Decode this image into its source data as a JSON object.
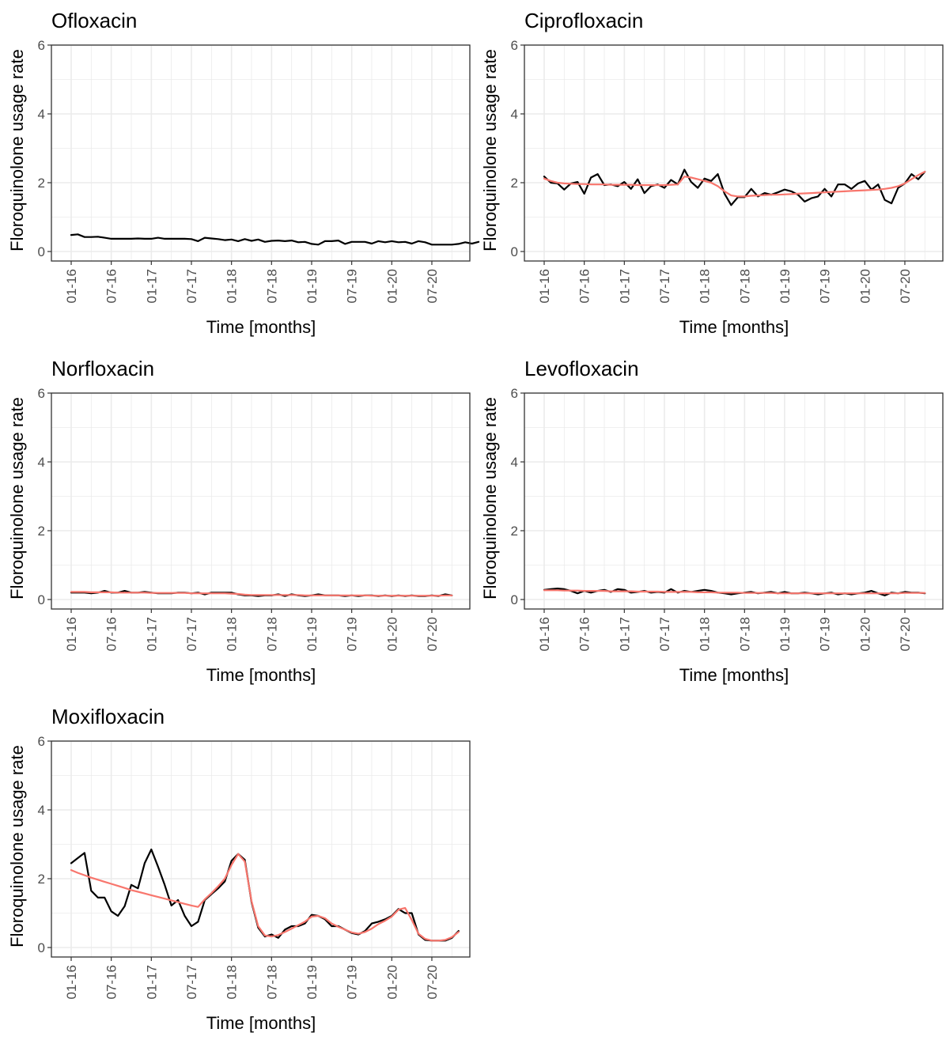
{
  "figure": {
    "ylabel": "Floroquinolone usage rate",
    "xlabel": "Time [months]",
    "x_tick_labels": [
      "01-16",
      "07-16",
      "01-17",
      "07-17",
      "01-18",
      "07-18",
      "01-19",
      "07-19",
      "01-20",
      "07-20"
    ],
    "y_tick_labels": [
      "0",
      "2",
      "4",
      "6"
    ]
  },
  "colors": {
    "observed": "#000000",
    "fitted": "#F8766D",
    "grid": "#EBEBEB",
    "border": "#333333"
  },
  "chart_data": [
    {
      "type": "line",
      "title": "Ofloxacin",
      "xlabel": "Time [months]",
      "ylabel": "Floroquinolone usage rate",
      "x_start": "01-16",
      "x_unit": "months",
      "ylim": [
        0,
        6
      ],
      "grid": true,
      "series": [
        {
          "values": [
            0.48,
            0.5,
            0.42,
            0.42,
            0.43,
            0.4,
            0.37,
            0.37,
            0.37,
            0.37,
            0.38,
            0.37,
            0.37,
            0.4,
            0.37,
            0.37,
            0.37,
            0.37,
            0.36,
            0.3,
            0.4,
            0.38,
            0.36,
            0.33,
            0.35,
            0.3,
            0.36,
            0.31,
            0.35,
            0.28,
            0.31,
            0.32,
            0.3,
            0.32,
            0.27,
            0.28,
            0.22,
            0.2,
            0.3,
            0.3,
            0.32,
            0.22,
            0.28,
            0.28,
            0.28,
            0.23,
            0.3,
            0.27,
            0.3,
            0.27,
            0.28,
            0.23,
            0.3,
            0.27,
            0.2,
            0.2,
            0.2,
            0.2,
            0.22,
            0.27,
            0.23,
            0.28
          ]
        }
      ]
    },
    {
      "type": "line",
      "title": "Ciprofloxacin",
      "xlabel": "Time [months]",
      "ylabel": "Floroquinolone usage rate",
      "x_start": "01-16",
      "x_unit": "months",
      "ylim": [
        0,
        6
      ],
      "grid": true,
      "series": [
        {
          "values": [
            2.18,
            2.0,
            1.98,
            1.8,
            1.98,
            2.02,
            1.68,
            2.15,
            2.25,
            1.93,
            1.95,
            1.9,
            2.02,
            1.82,
            2.1,
            1.7,
            1.9,
            1.95,
            1.85,
            2.08,
            1.95,
            2.38,
            2.02,
            1.85,
            2.12,
            2.05,
            2.25,
            1.68,
            1.35,
            1.58,
            1.58,
            1.82,
            1.6,
            1.7,
            1.65,
            1.72,
            1.8,
            1.75,
            1.65,
            1.45,
            1.55,
            1.6,
            1.82,
            1.6,
            1.95,
            1.95,
            1.82,
            1.98,
            2.05,
            1.8,
            1.95,
            1.5,
            1.4,
            1.85,
            1.98,
            2.25,
            2.1,
            2.32
          ]
        },
        {
          "values": [
            2.12,
            2.05,
            2.0,
            1.98,
            1.97,
            1.96,
            1.96,
            1.95,
            1.95,
            1.95,
            1.94,
            1.94,
            1.94,
            1.94,
            1.93,
            1.93,
            1.93,
            1.93,
            1.93,
            1.94,
            1.95,
            2.18,
            2.15,
            2.1,
            2.05,
            2.0,
            1.9,
            1.75,
            1.63,
            1.6,
            1.6,
            1.62,
            1.63,
            1.64,
            1.65,
            1.65,
            1.66,
            1.67,
            1.68,
            1.69,
            1.7,
            1.71,
            1.72,
            1.73,
            1.74,
            1.75,
            1.76,
            1.77,
            1.78,
            1.79,
            1.8,
            1.82,
            1.85,
            1.9,
            1.98,
            2.1,
            2.22,
            2.32
          ]
        }
      ]
    },
    {
      "type": "line",
      "title": "Norfloxacin",
      "xlabel": "Time [months]",
      "ylabel": "Floroquinolone usage rate",
      "x_start": "01-16",
      "x_unit": "months",
      "ylim": [
        0,
        6
      ],
      "grid": true,
      "series": [
        {
          "values": [
            0.2,
            0.2,
            0.2,
            0.18,
            0.2,
            0.25,
            0.2,
            0.2,
            0.25,
            0.2,
            0.2,
            0.22,
            0.2,
            0.18,
            0.18,
            0.18,
            0.2,
            0.2,
            0.18,
            0.2,
            0.15,
            0.2,
            0.2,
            0.2,
            0.2,
            0.15,
            0.12,
            0.12,
            0.1,
            0.12,
            0.12,
            0.15,
            0.1,
            0.15,
            0.12,
            0.1,
            0.12,
            0.15,
            0.12,
            0.12,
            0.12,
            0.1,
            0.12,
            0.1,
            0.12,
            0.12,
            0.1,
            0.12,
            0.1,
            0.12,
            0.1,
            0.12,
            0.1,
            0.1,
            0.12,
            0.1,
            0.15,
            0.12
          ]
        },
        {
          "values": [
            0.22,
            0.22,
            0.22,
            0.21,
            0.21,
            0.21,
            0.21,
            0.2,
            0.2,
            0.2,
            0.2,
            0.2,
            0.19,
            0.19,
            0.19,
            0.19,
            0.19,
            0.19,
            0.18,
            0.18,
            0.18,
            0.18,
            0.18,
            0.18,
            0.17,
            0.16,
            0.14,
            0.13,
            0.13,
            0.13,
            0.13,
            0.13,
            0.13,
            0.13,
            0.13,
            0.12,
            0.12,
            0.12,
            0.12,
            0.12,
            0.12,
            0.12,
            0.12,
            0.12,
            0.12,
            0.11,
            0.11,
            0.11,
            0.11,
            0.11,
            0.11,
            0.11,
            0.11,
            0.11,
            0.11,
            0.11,
            0.12,
            0.12
          ]
        }
      ]
    },
    {
      "type": "line",
      "title": "Levofloxacin",
      "xlabel": "Time [months]",
      "ylabel": "Floroquinolone usage rate",
      "x_start": "01-16",
      "x_unit": "months",
      "ylim": [
        0,
        6
      ],
      "grid": true,
      "series": [
        {
          "values": [
            0.28,
            0.3,
            0.32,
            0.3,
            0.25,
            0.18,
            0.25,
            0.2,
            0.25,
            0.28,
            0.22,
            0.3,
            0.28,
            0.2,
            0.22,
            0.25,
            0.2,
            0.22,
            0.2,
            0.3,
            0.2,
            0.25,
            0.22,
            0.25,
            0.28,
            0.25,
            0.2,
            0.18,
            0.15,
            0.18,
            0.2,
            0.22,
            0.18,
            0.2,
            0.22,
            0.18,
            0.22,
            0.18,
            0.18,
            0.2,
            0.18,
            0.15,
            0.18,
            0.2,
            0.15,
            0.18,
            0.15,
            0.18,
            0.2,
            0.25,
            0.18,
            0.12,
            0.2,
            0.18,
            0.22,
            0.2,
            0.2,
            0.18
          ]
        },
        {
          "values": [
            0.27,
            0.27,
            0.27,
            0.26,
            0.26,
            0.26,
            0.25,
            0.25,
            0.25,
            0.25,
            0.24,
            0.24,
            0.24,
            0.24,
            0.23,
            0.23,
            0.23,
            0.23,
            0.22,
            0.22,
            0.22,
            0.22,
            0.22,
            0.21,
            0.21,
            0.21,
            0.2,
            0.2,
            0.2,
            0.2,
            0.19,
            0.19,
            0.19,
            0.19,
            0.19,
            0.18,
            0.18,
            0.18,
            0.18,
            0.18,
            0.18,
            0.18,
            0.18,
            0.18,
            0.18,
            0.18,
            0.18,
            0.18,
            0.18,
            0.18,
            0.18,
            0.18,
            0.18,
            0.18,
            0.19,
            0.19,
            0.19,
            0.19
          ]
        }
      ]
    },
    {
      "type": "line",
      "title": "Moxifloxacin",
      "xlabel": "Time [months]",
      "ylabel": "Floroquinolone usage rate",
      "x_start": "01-16",
      "x_unit": "months",
      "ylim": [
        0,
        6
      ],
      "grid": true,
      "series": [
        {
          "values": [
            2.45,
            2.6,
            2.75,
            1.65,
            1.45,
            1.45,
            1.05,
            0.92,
            1.2,
            1.82,
            1.72,
            2.45,
            2.85,
            2.35,
            1.82,
            1.22,
            1.38,
            0.92,
            0.62,
            0.75,
            1.38,
            1.55,
            1.72,
            1.92,
            2.52,
            2.72,
            2.55,
            1.32,
            0.58,
            0.32,
            0.38,
            0.28,
            0.52,
            0.62,
            0.62,
            0.7,
            0.95,
            0.92,
            0.82,
            0.62,
            0.62,
            0.52,
            0.42,
            0.38,
            0.48,
            0.7,
            0.75,
            0.82,
            0.92,
            1.12,
            1.0,
            1.0,
            0.38,
            0.22,
            0.2,
            0.2,
            0.2,
            0.28,
            0.48
          ]
        },
        {
          "values": [
            2.25,
            2.17,
            2.1,
            2.03,
            1.97,
            1.91,
            1.85,
            1.79,
            1.73,
            1.67,
            1.62,
            1.57,
            1.52,
            1.47,
            1.42,
            1.37,
            1.32,
            1.27,
            1.22,
            1.18,
            1.4,
            1.58,
            1.78,
            2.0,
            2.4,
            2.72,
            2.5,
            1.35,
            0.62,
            0.35,
            0.32,
            0.36,
            0.45,
            0.55,
            0.65,
            0.75,
            0.9,
            0.92,
            0.85,
            0.7,
            0.6,
            0.52,
            0.44,
            0.4,
            0.45,
            0.55,
            0.68,
            0.78,
            0.9,
            1.1,
            1.15,
            0.8,
            0.4,
            0.25,
            0.2,
            0.2,
            0.22,
            0.3,
            0.45
          ]
        }
      ]
    }
  ]
}
